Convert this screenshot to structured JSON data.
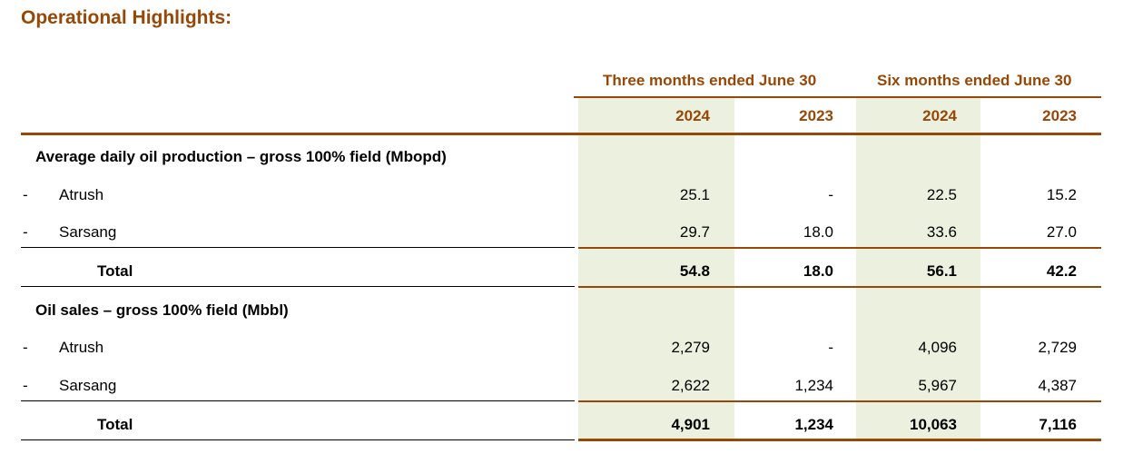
{
  "title": "Operational Highlights:",
  "headers": {
    "group1": "Three months ended June 30",
    "group2": "Six months ended June 30",
    "years": [
      "2024",
      "2023",
      "2024",
      "2023"
    ]
  },
  "sections": [
    {
      "heading": "Average daily oil production – gross 100% field (Mbopd)",
      "rows": [
        {
          "marker": "-",
          "label": "Atrush",
          "values": [
            "25.1",
            "-",
            "22.5",
            "15.2"
          ]
        },
        {
          "marker": "-",
          "label": "Sarsang",
          "values": [
            "29.7",
            "18.0",
            "33.6",
            "27.0"
          ]
        }
      ],
      "total": {
        "label": "Total",
        "values": [
          "54.8",
          "18.0",
          "56.1",
          "42.2"
        ]
      }
    },
    {
      "heading": "Oil sales – gross 100% field (Mbbl)",
      "rows": [
        {
          "marker": "-",
          "label": "Atrush",
          "values": [
            "2,279",
            "-",
            "4,096",
            "2,729"
          ]
        },
        {
          "marker": "-",
          "label": "Sarsang",
          "values": [
            "2,622",
            "1,234",
            "5,967",
            "4,387"
          ]
        }
      ],
      "total": {
        "label": "Total",
        "values": [
          "4,901",
          "1,234",
          "10,063",
          "7,116"
        ]
      }
    }
  ]
}
